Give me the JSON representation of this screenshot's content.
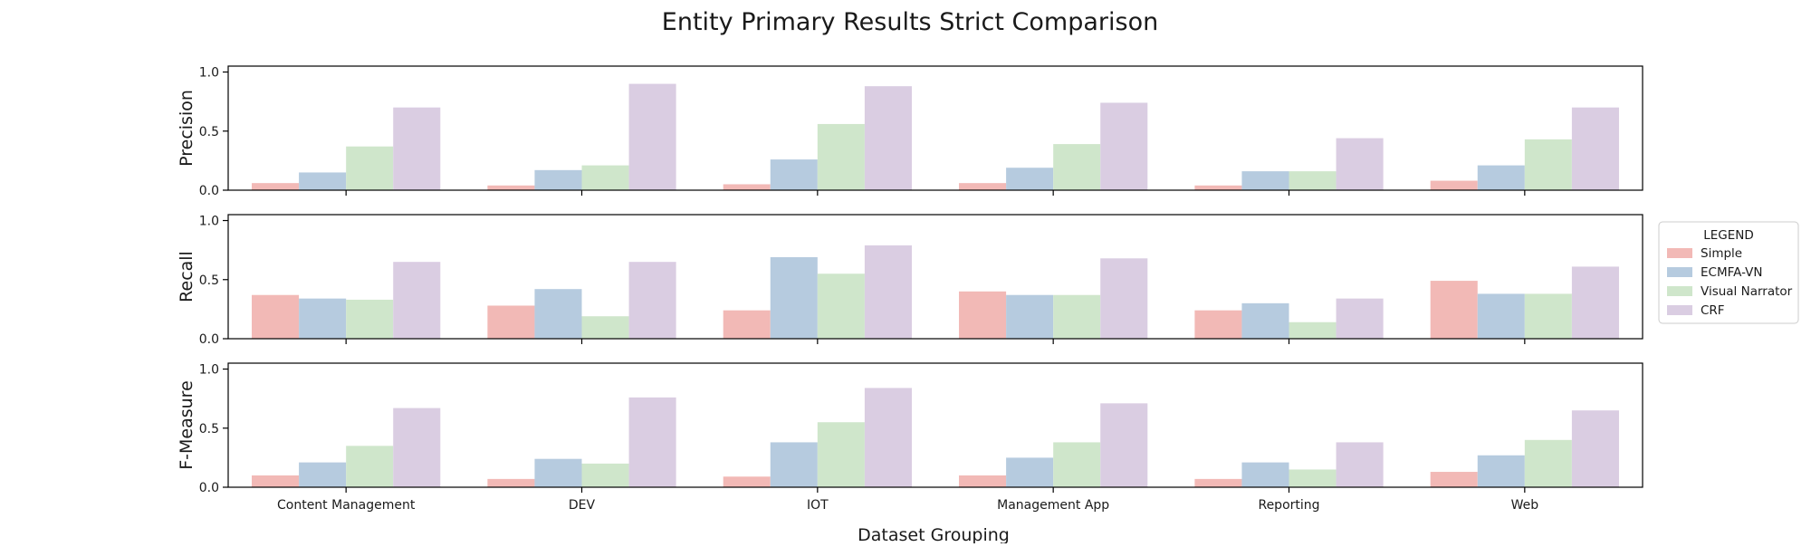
{
  "chart_data": {
    "type": "bar",
    "title": "Entity Primary Results Strict Comparison",
    "xlabel": "Dataset Grouping",
    "categories": [
      "Content Management",
      "DEV",
      "IOT",
      "Management App",
      "Reporting",
      "Web"
    ],
    "ylim": [
      0,
      1.05
    ],
    "yticks": [
      "0.0",
      "0.5",
      "1.0"
    ],
    "grid": false,
    "legend": {
      "title": "LEGEND",
      "placement": "center-right, outside",
      "entries": [
        "Simple",
        "ECMFA-VN",
        "Visual Narrator",
        "CRF"
      ]
    },
    "colors": {
      "Simple": "#f2b9b6",
      "ECMFA-VN": "#b6cbdf",
      "Visual Narrator": "#cfe6cb",
      "CRF": "#dacde2"
    },
    "panels": [
      {
        "ylabel": "Precision",
        "series": [
          {
            "name": "Simple",
            "values": [
              0.06,
              0.04,
              0.05,
              0.06,
              0.04,
              0.08
            ]
          },
          {
            "name": "ECMFA-VN",
            "values": [
              0.15,
              0.17,
              0.26,
              0.19,
              0.16,
              0.21
            ]
          },
          {
            "name": "Visual Narrator",
            "values": [
              0.37,
              0.21,
              0.56,
              0.39,
              0.16,
              0.43
            ]
          },
          {
            "name": "CRF",
            "values": [
              0.7,
              0.9,
              0.88,
              0.74,
              0.44,
              0.7
            ]
          }
        ]
      },
      {
        "ylabel": "Recall",
        "series": [
          {
            "name": "Simple",
            "values": [
              0.37,
              0.28,
              0.24,
              0.4,
              0.24,
              0.49
            ]
          },
          {
            "name": "ECMFA-VN",
            "values": [
              0.34,
              0.42,
              0.69,
              0.37,
              0.3,
              0.38
            ]
          },
          {
            "name": "Visual Narrator",
            "values": [
              0.33,
              0.19,
              0.55,
              0.37,
              0.14,
              0.38
            ]
          },
          {
            "name": "CRF",
            "values": [
              0.65,
              0.65,
              0.79,
              0.68,
              0.34,
              0.61
            ]
          }
        ]
      },
      {
        "ylabel": "F-Measure",
        "series": [
          {
            "name": "Simple",
            "values": [
              0.1,
              0.07,
              0.09,
              0.1,
              0.07,
              0.13
            ]
          },
          {
            "name": "ECMFA-VN",
            "values": [
              0.21,
              0.24,
              0.38,
              0.25,
              0.21,
              0.27
            ]
          },
          {
            "name": "Visual Narrator",
            "values": [
              0.35,
              0.2,
              0.55,
              0.38,
              0.15,
              0.4
            ]
          },
          {
            "name": "CRF",
            "values": [
              0.67,
              0.76,
              0.84,
              0.71,
              0.38,
              0.65
            ]
          }
        ]
      }
    ]
  }
}
